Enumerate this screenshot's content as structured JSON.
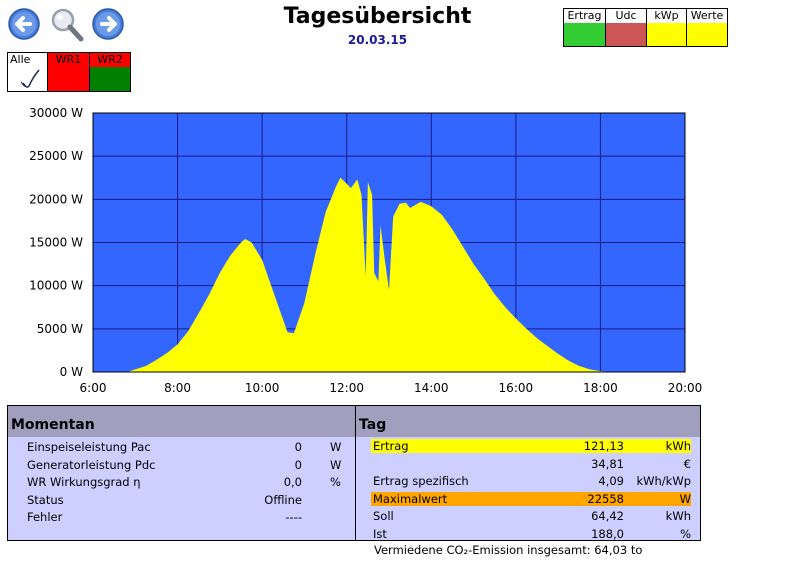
{
  "header": {
    "title": "Tagesübersicht",
    "date": "20.03.15"
  },
  "nav": {
    "back_icon": "arrow-left-icon",
    "search_icon": "magnifier-icon",
    "forward_icon": "arrow-right-icon"
  },
  "inverter_selector": {
    "items": [
      {
        "label": "Alle",
        "state": "checked",
        "color": "#ffffff"
      },
      {
        "label": "WR1",
        "state": "red",
        "color": "#ff0000"
      },
      {
        "label": "WR2",
        "state": "green",
        "color": "#008000"
      }
    ]
  },
  "view_selector": {
    "items": [
      {
        "label": "Ertrag",
        "color": "#33cc33"
      },
      {
        "label": "Udc",
        "color": "#cc5555"
      },
      {
        "label": "kWp",
        "color": "#ffff00"
      },
      {
        "label": "Werte",
        "color": "#ffff00"
      }
    ]
  },
  "chart_data": {
    "type": "area",
    "y_tick_labels": [
      "0 W",
      "5000 W",
      "10000 W",
      "15000 W",
      "20000 W",
      "25000 W",
      "30000 W"
    ],
    "x_tick_labels": [
      "6:00",
      "8:00",
      "10:00",
      "12:00",
      "14:00",
      "16:00",
      "18:00",
      "20:00"
    ],
    "xlim": [
      6,
      20
    ],
    "ylim": [
      0,
      30000
    ],
    "grid": true,
    "background_color": "#3366ff",
    "fill_color": "#ffff00",
    "series": [
      {
        "x": [
          6.8,
          7.0,
          7.25,
          7.5,
          7.75,
          8.0,
          8.25,
          8.5,
          8.75,
          9.0,
          9.25,
          9.5,
          9.6,
          9.75,
          10.0,
          10.25,
          10.5,
          10.6,
          10.75,
          11.0,
          11.25,
          11.5,
          11.75,
          11.85,
          12.0,
          12.1,
          12.25,
          12.35,
          12.45,
          12.5,
          12.6,
          12.65,
          12.75,
          12.8,
          12.9,
          13.0,
          13.1,
          13.25,
          13.4,
          13.5,
          13.75,
          14.0,
          14.25,
          14.5,
          14.75,
          15.0,
          15.25,
          15.5,
          15.75,
          16.0,
          16.25,
          16.5,
          16.75,
          17.0,
          17.25,
          17.5,
          17.75,
          18.0,
          18.25,
          18.5
        ],
        "y": [
          0,
          300,
          700,
          1400,
          2200,
          3200,
          4700,
          6800,
          9000,
          11500,
          13500,
          15000,
          15400,
          15000,
          13000,
          9500,
          6000,
          4600,
          4500,
          8000,
          13500,
          18500,
          21500,
          22500,
          21800,
          21300,
          22300,
          20500,
          11000,
          22000,
          20500,
          11500,
          10500,
          17000,
          13000,
          9500,
          18000,
          19500,
          19600,
          19000,
          19700,
          19200,
          18200,
          16500,
          14500,
          12500,
          10800,
          9000,
          7500,
          6200,
          5000,
          3900,
          3000,
          2100,
          1300,
          700,
          300,
          100,
          0,
          0
        ]
      }
    ]
  },
  "momentan": {
    "title": "Momentan",
    "rows": [
      {
        "label": "Einspeiseleistung Pac",
        "value": "0",
        "unit": "W"
      },
      {
        "label": "Generatorleistung Pdc",
        "value": "0",
        "unit": "W"
      },
      {
        "label": "WR Wirkungsgrad η",
        "value": "0,0",
        "unit": "%"
      },
      {
        "label": "Status",
        "value": "Offline",
        "unit": ""
      },
      {
        "label": "Fehler",
        "value": "----",
        "unit": ""
      }
    ]
  },
  "tag": {
    "title": "Tag",
    "rows": [
      {
        "label": "Ertrag",
        "value": "121,13",
        "unit": "kWh",
        "highlight": "#ffff00"
      },
      {
        "label": "",
        "value": "34,81",
        "unit": "€",
        "highlight": ""
      },
      {
        "label": "Ertrag spezifisch",
        "value": "4,09",
        "unit": "kWh/kWp",
        "highlight": ""
      },
      {
        "label": "Maximalwert",
        "value": "22558",
        "unit": "W",
        "highlight": "#ffa500"
      },
      {
        "label": "Soll",
        "value": "64,42",
        "unit": "kWh",
        "highlight": ""
      },
      {
        "label": "Ist",
        "value": "188,0",
        "unit": "%",
        "highlight": ""
      }
    ]
  },
  "co2_note": "Vermiedene CO₂-Emission insgesamt: 64,03 to"
}
